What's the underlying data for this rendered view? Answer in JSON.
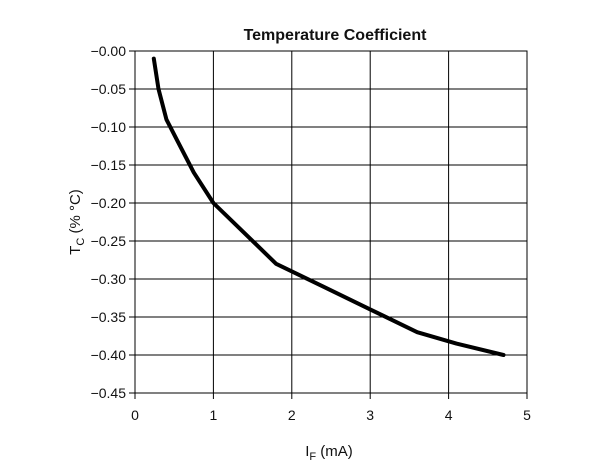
{
  "chart_data": {
    "type": "line",
    "title": "Temperature Coefficient",
    "xlabel": {
      "main": "I",
      "sub": "F",
      "suffix": " (mA)"
    },
    "ylabel": {
      "main": "T",
      "sub": "C",
      "suffix": " (% °C)"
    },
    "xlim": [
      0,
      5
    ],
    "ylim": [
      -0.45,
      0.0
    ],
    "x_ticks": [
      0,
      1,
      2,
      3,
      4,
      5
    ],
    "x_tick_labels": [
      "0",
      "1",
      "2",
      "3",
      "4",
      "5"
    ],
    "y_ticks": [
      0.0,
      -0.05,
      -0.1,
      -0.15,
      -0.2,
      -0.25,
      -0.3,
      -0.35,
      -0.4,
      -0.45
    ],
    "y_tick_labels": [
      "−0.00",
      "−0.05",
      "−0.10",
      "−0.15",
      "−0.20",
      "−0.25",
      "−0.30",
      "−0.35",
      "−0.40",
      "−0.45"
    ],
    "grid": true,
    "series": [
      {
        "color": "#000000",
        "x": [
          0.24,
          0.3,
          0.4,
          0.55,
          0.75,
          1.0,
          1.4,
          1.8,
          2.4,
          3.0,
          3.6,
          4.1,
          4.7
        ],
        "y": [
          -0.01,
          -0.05,
          -0.09,
          -0.12,
          -0.16,
          -0.2,
          -0.24,
          -0.28,
          -0.31,
          -0.34,
          -0.37,
          -0.385,
          -0.4
        ]
      }
    ]
  }
}
